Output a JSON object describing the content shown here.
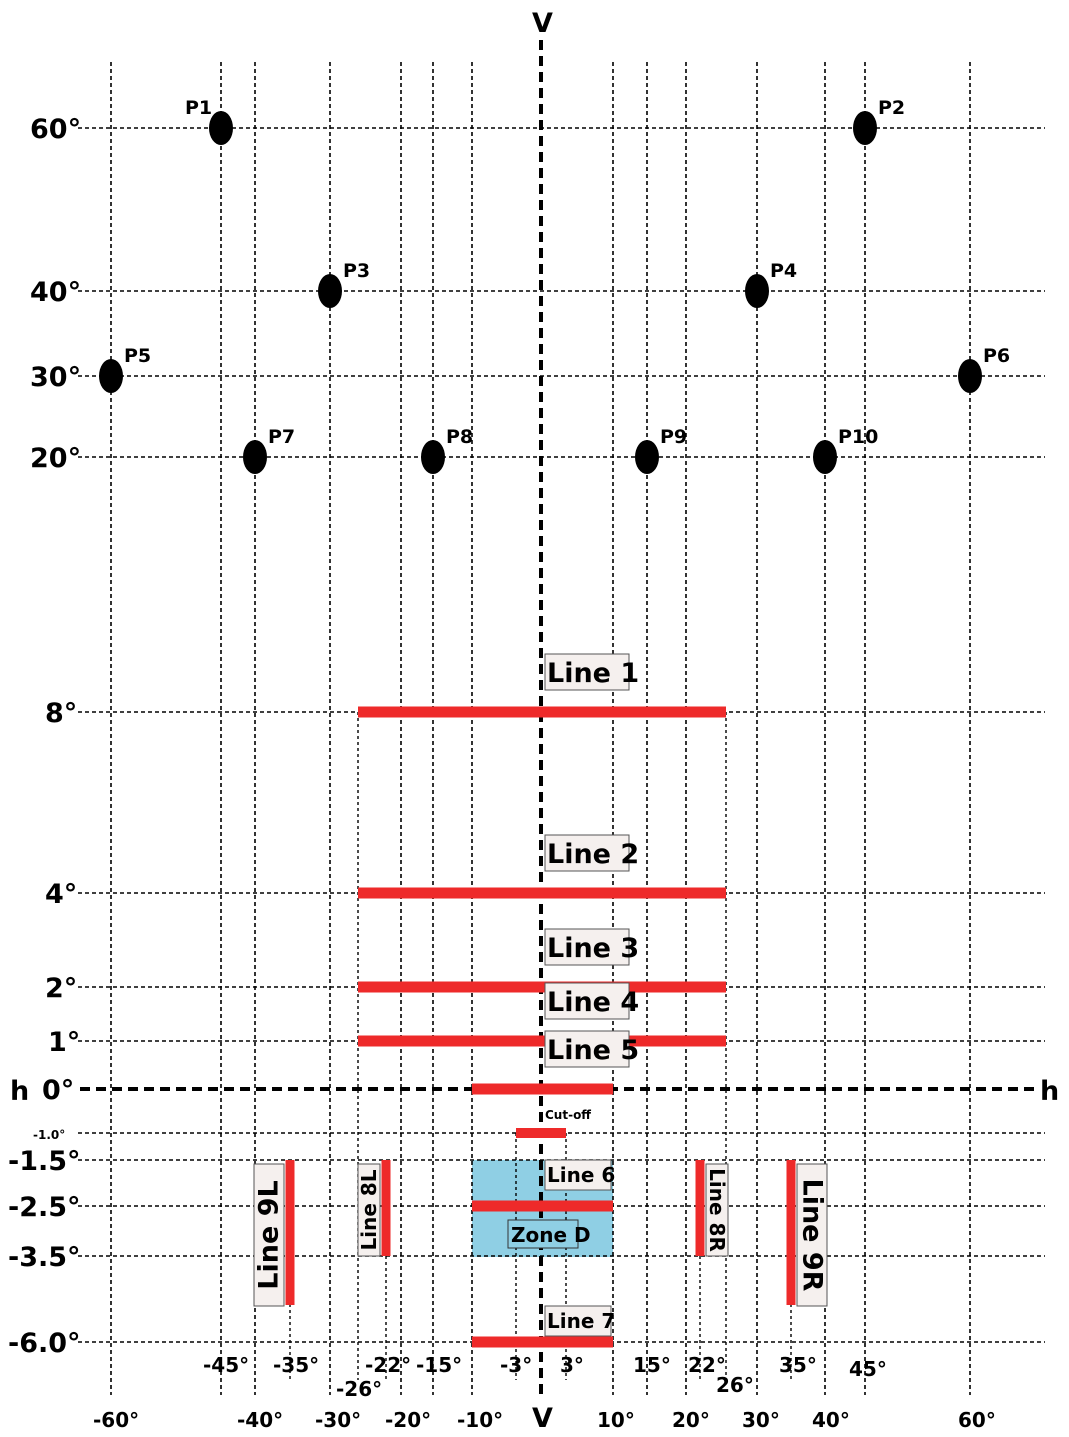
{
  "axes": {
    "vertical_top": "V",
    "vertical_bottom": "V",
    "horizontal_left": "h",
    "horizontal_right": "h"
  },
  "y_ticks": [
    {
      "label": "60°"
    },
    {
      "label": "40°"
    },
    {
      "label": "30°"
    },
    {
      "label": "20°"
    },
    {
      "label": "8°"
    },
    {
      "label": "4°"
    },
    {
      "label": "2°"
    },
    {
      "label": "1°"
    },
    {
      "label": "0°"
    },
    {
      "label": "-1.0°"
    },
    {
      "label": "-1.5°"
    },
    {
      "label": "-2.5°"
    },
    {
      "label": "-3.5°"
    },
    {
      "label": "-6.0°"
    }
  ],
  "x_ticks_upper": [
    {
      "label": "-45°"
    },
    {
      "label": "-35°"
    },
    {
      "label": "-22°"
    },
    {
      "label": "-15°"
    },
    {
      "label": "-3°"
    },
    {
      "label": "3°"
    },
    {
      "label": "15°"
    },
    {
      "label": "22°"
    },
    {
      "label": "35°"
    },
    {
      "label": "45°"
    },
    {
      "label": "-26°"
    },
    {
      "label": "26°"
    }
  ],
  "x_ticks_lower": [
    {
      "label": "-60°"
    },
    {
      "label": "-40°"
    },
    {
      "label": "-30°"
    },
    {
      "label": "-20°"
    },
    {
      "label": "-10°"
    },
    {
      "label": "10°"
    },
    {
      "label": "20°"
    },
    {
      "label": "30°"
    },
    {
      "label": "40°"
    },
    {
      "label": "60°"
    }
  ],
  "points": [
    {
      "label": "P1",
      "h": -45,
      "v": 60
    },
    {
      "label": "P2",
      "h": 45,
      "v": 60
    },
    {
      "label": "P3",
      "h": -30,
      "v": 40
    },
    {
      "label": "P4",
      "h": 30,
      "v": 40
    },
    {
      "label": "P5",
      "h": -60,
      "v": 30
    },
    {
      "label": "P6",
      "h": 60,
      "v": 30
    },
    {
      "label": "P7",
      "h": -40,
      "v": 20
    },
    {
      "label": "P8",
      "h": -15,
      "v": 20
    },
    {
      "label": "P9",
      "h": 15,
      "v": 20
    },
    {
      "label": "P10",
      "h": 40,
      "v": 20
    }
  ],
  "lines": [
    {
      "label": "Line 1",
      "from_h": -26,
      "to_h": 26,
      "v": 8
    },
    {
      "label": "Line 2",
      "from_h": -26,
      "to_h": 26,
      "v": 4
    },
    {
      "label": "Line 3",
      "from_h": -26,
      "to_h": 26,
      "v": 2
    },
    {
      "label": "Line 4",
      "from_h": -26,
      "to_h": 26,
      "v": 1
    },
    {
      "label": "Line 5",
      "from_h": -10,
      "to_h": 10,
      "v": 0
    },
    {
      "label": "Line 6",
      "from_h": -10,
      "to_h": 10,
      "v": -2.5
    },
    {
      "label": "Line 7",
      "from_h": -10,
      "to_h": 10,
      "v": -6
    }
  ],
  "cutoff": {
    "label": "Cut-off",
    "from_h": -3,
    "to_h": 3,
    "v": -1
  },
  "vertical_lines": [
    {
      "label": "Line 8L",
      "h": -22,
      "from_v": -1.5,
      "to_v": -3.5
    },
    {
      "label": "Line 8R",
      "h": 22,
      "from_v": -1.5,
      "to_v": -3.5
    },
    {
      "label": "Line 9L",
      "h": -35,
      "from_v": -1.5,
      "to_v": -4.5
    },
    {
      "label": "Line 9R",
      "h": 35,
      "from_v": -1.5,
      "to_v": -4.5
    }
  ],
  "zone": {
    "label": "Zone D",
    "from_h": -10,
    "to_h": 10,
    "from_v": -1.5,
    "to_v": -3.5,
    "color": "#8fcfe4"
  },
  "colors": {
    "line": "#ee2a2a",
    "point": "#000000",
    "grid": "#000000"
  }
}
